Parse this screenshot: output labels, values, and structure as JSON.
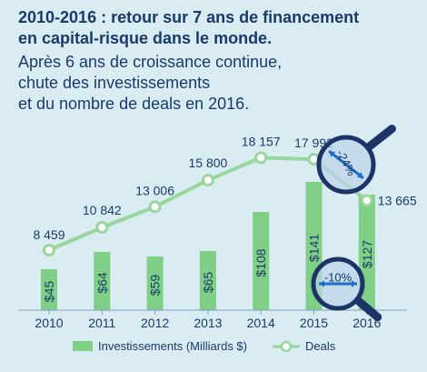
{
  "header": {
    "title_line1": "2010-2016 : retour sur 7 ans de financement",
    "title_line2": "en capital-risque dans le monde.",
    "subtitle_lines": [
      "Après 6 ans de croissance continue,",
      "chute des investissements",
      "et du nombre de deals en 2016."
    ]
  },
  "chart_data": {
    "type": "bar",
    "categories": [
      "2010",
      "2011",
      "2012",
      "2013",
      "2014",
      "2015",
      "2016"
    ],
    "series": [
      {
        "name": "Investissements (Milliards $)",
        "type": "bar",
        "values": [
          45,
          64,
          59,
          65,
          108,
          141,
          127
        ],
        "labels": [
          "$45",
          "$64",
          "$59",
          "$65",
          "$108",
          "$141",
          "$127"
        ]
      },
      {
        "name": "Deals",
        "type": "line",
        "values": [
          8459,
          10842,
          13006,
          15800,
          18157,
          17992,
          13665
        ],
        "labels": [
          "8 459",
          "10 842",
          "13 006",
          "15 800",
          "18 157",
          "17 992",
          "13 665"
        ]
      }
    ],
    "annotations": [
      {
        "text": "-24%",
        "target": "Deals",
        "from": "2015",
        "to": "2016"
      },
      {
        "text": "-10%",
        "target": "Investissements (Milliards $)",
        "from": "2015",
        "to": "2016"
      }
    ],
    "legend": "bottom",
    "grid": false
  },
  "colors": {
    "background": "#d9ecf1",
    "bar": "#7fcf86",
    "line": "#99d69e",
    "text": "#1a3a6c",
    "magnifier_ring": "#1d3566",
    "magnifier_lens": "#bcd4ea",
    "arrow": "#1b6fc7"
  }
}
